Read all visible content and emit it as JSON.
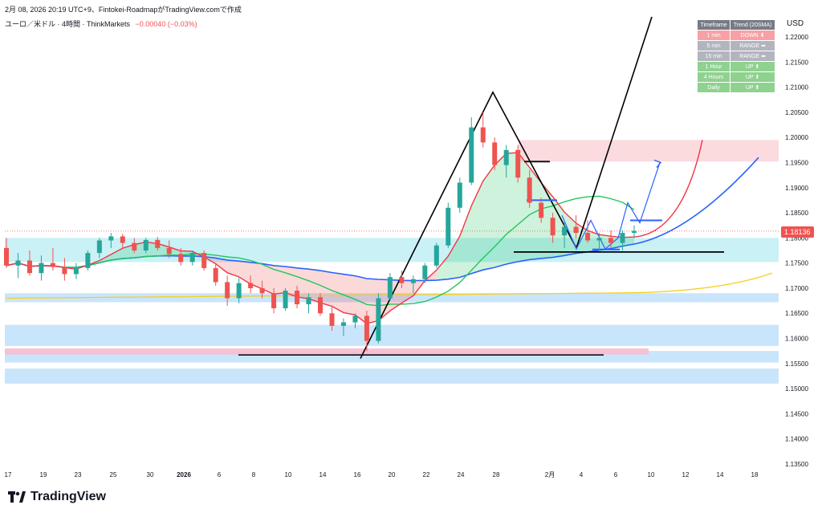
{
  "header": {
    "date_line": "2月 08, 2026 20:19 UTC+9、Fintokei-RoadmapがTradingView.comで作成",
    "symbol": "ユーロ／米ドル · 4時間 · ThinkMarkets",
    "change": "−0.00040 (−0.03%)"
  },
  "currency_label": "USD",
  "last_price": "1.18136",
  "brand": "TradingView",
  "trend_table": {
    "headers": [
      "Timeframe",
      "Trend (20SMA)"
    ],
    "rows": [
      {
        "tf": "1 min",
        "trend": "DOWN ⬇",
        "state": "down"
      },
      {
        "tf": "5 min",
        "trend": "RANGE ➡",
        "state": "range"
      },
      {
        "tf": "15 min",
        "trend": "RANGE ➡",
        "state": "range"
      },
      {
        "tf": "1 Hour",
        "trend": "UP ⬆",
        "state": "up"
      },
      {
        "tf": "4 Hours",
        "trend": "UP ⬆",
        "state": "up"
      },
      {
        "tf": "Daily",
        "trend": "UP ⬆",
        "state": "up"
      }
    ]
  },
  "colors": {
    "up_candle": "#26a69a",
    "down_candle": "#ef5350",
    "ma_red": "#f23645",
    "ma_green": "#22c55e",
    "ma_blue": "#2962ff",
    "ma_yellow": "#f5d020",
    "zone_cyan": "#b2ebf2",
    "zone_blue": "#bbdefb",
    "zone_pink": "#f8bbd0"
  },
  "chart_data": {
    "type": "candlestick",
    "ylim": [
      1.135,
      1.225
    ],
    "y_ticks": [
      "1.22000",
      "1.21500",
      "1.21000",
      "1.20500",
      "1.20000",
      "1.19500",
      "1.19000",
      "1.18500",
      "1.18000",
      "1.17500",
      "1.17000",
      "1.16500",
      "1.16000",
      "1.15500",
      "1.15000",
      "1.14500",
      "1.14000",
      "1.13500"
    ],
    "x_ticks": [
      "17",
      "19",
      "23",
      "25",
      "30",
      "2026",
      "6",
      "8",
      "10",
      "14",
      "16",
      "20",
      "22",
      "24",
      "28",
      "2月",
      "4",
      "6",
      "10",
      "12",
      "14",
      "18"
    ],
    "candles": [
      {
        "o": 1.178,
        "h": 1.18,
        "l": 1.174,
        "c": 1.1745
      },
      {
        "o": 1.1745,
        "h": 1.177,
        "l": 1.172,
        "c": 1.1755
      },
      {
        "o": 1.1755,
        "h": 1.1775,
        "l": 1.1725,
        "c": 1.173
      },
      {
        "o": 1.173,
        "h": 1.1765,
        "l": 1.1715,
        "c": 1.175
      },
      {
        "o": 1.175,
        "h": 1.178,
        "l": 1.1735,
        "c": 1.1742
      },
      {
        "o": 1.1742,
        "h": 1.176,
        "l": 1.1715,
        "c": 1.1728
      },
      {
        "o": 1.1728,
        "h": 1.175,
        "l": 1.1718,
        "c": 1.174
      },
      {
        "o": 1.174,
        "h": 1.1775,
        "l": 1.1735,
        "c": 1.177
      },
      {
        "o": 1.177,
        "h": 1.18,
        "l": 1.176,
        "c": 1.1795
      },
      {
        "o": 1.1795,
        "h": 1.181,
        "l": 1.178,
        "c": 1.1803
      },
      {
        "o": 1.1803,
        "h": 1.1808,
        "l": 1.178,
        "c": 1.179
      },
      {
        "o": 1.179,
        "h": 1.18,
        "l": 1.177,
        "c": 1.1775
      },
      {
        "o": 1.1775,
        "h": 1.18,
        "l": 1.177,
        "c": 1.1796
      },
      {
        "o": 1.1796,
        "h": 1.1802,
        "l": 1.1775,
        "c": 1.178
      },
      {
        "o": 1.178,
        "h": 1.1795,
        "l": 1.176,
        "c": 1.1768
      },
      {
        "o": 1.1768,
        "h": 1.178,
        "l": 1.1745,
        "c": 1.1752
      },
      {
        "o": 1.1752,
        "h": 1.1775,
        "l": 1.1745,
        "c": 1.177
      },
      {
        "o": 1.177,
        "h": 1.1775,
        "l": 1.1735,
        "c": 1.174
      },
      {
        "o": 1.174,
        "h": 1.175,
        "l": 1.1705,
        "c": 1.1712
      },
      {
        "o": 1.1712,
        "h": 1.1725,
        "l": 1.1665,
        "c": 1.168
      },
      {
        "o": 1.168,
        "h": 1.172,
        "l": 1.167,
        "c": 1.171
      },
      {
        "o": 1.171,
        "h": 1.1725,
        "l": 1.169,
        "c": 1.17
      },
      {
        "o": 1.17,
        "h": 1.1715,
        "l": 1.168,
        "c": 1.169
      },
      {
        "o": 1.169,
        "h": 1.17,
        "l": 1.165,
        "c": 1.166
      },
      {
        "o": 1.166,
        "h": 1.17,
        "l": 1.1655,
        "c": 1.1695
      },
      {
        "o": 1.1695,
        "h": 1.1705,
        "l": 1.166,
        "c": 1.1668
      },
      {
        "o": 1.1668,
        "h": 1.169,
        "l": 1.165,
        "c": 1.1682
      },
      {
        "o": 1.1682,
        "h": 1.169,
        "l": 1.1645,
        "c": 1.165
      },
      {
        "o": 1.165,
        "h": 1.1665,
        "l": 1.1615,
        "c": 1.1625
      },
      {
        "o": 1.1625,
        "h": 1.164,
        "l": 1.1605,
        "c": 1.1632
      },
      {
        "o": 1.1632,
        "h": 1.165,
        "l": 1.162,
        "c": 1.1645
      },
      {
        "o": 1.1645,
        "h": 1.1655,
        "l": 1.1575,
        "c": 1.1595
      },
      {
        "o": 1.1595,
        "h": 1.169,
        "l": 1.159,
        "c": 1.168
      },
      {
        "o": 1.168,
        "h": 1.173,
        "l": 1.1675,
        "c": 1.1722
      },
      {
        "o": 1.1722,
        "h": 1.1735,
        "l": 1.17,
        "c": 1.171
      },
      {
        "o": 1.171,
        "h": 1.1725,
        "l": 1.169,
        "c": 1.1718
      },
      {
        "o": 1.1718,
        "h": 1.175,
        "l": 1.171,
        "c": 1.1745
      },
      {
        "o": 1.1745,
        "h": 1.179,
        "l": 1.174,
        "c": 1.1785
      },
      {
        "o": 1.1785,
        "h": 1.187,
        "l": 1.178,
        "c": 1.186
      },
      {
        "o": 1.186,
        "h": 1.192,
        "l": 1.185,
        "c": 1.191
      },
      {
        "o": 1.191,
        "h": 1.204,
        "l": 1.1905,
        "c": 1.202
      },
      {
        "o": 1.202,
        "h": 1.205,
        "l": 1.198,
        "c": 1.199
      },
      {
        "o": 1.199,
        "h": 1.2,
        "l": 1.1935,
        "c": 1.1945
      },
      {
        "o": 1.1945,
        "h": 1.1985,
        "l": 1.192,
        "c": 1.1975
      },
      {
        "o": 1.1975,
        "h": 1.1985,
        "l": 1.191,
        "c": 1.192
      },
      {
        "o": 1.192,
        "h": 1.1935,
        "l": 1.186,
        "c": 1.187
      },
      {
        "o": 1.187,
        "h": 1.188,
        "l": 1.183,
        "c": 1.184
      },
      {
        "o": 1.184,
        "h": 1.185,
        "l": 1.179,
        "c": 1.1805
      },
      {
        "o": 1.1805,
        "h": 1.183,
        "l": 1.178,
        "c": 1.1822
      },
      {
        "o": 1.1822,
        "h": 1.1845,
        "l": 1.18,
        "c": 1.181
      },
      {
        "o": 1.181,
        "h": 1.1835,
        "l": 1.179,
        "c": 1.1795
      },
      {
        "o": 1.1795,
        "h": 1.181,
        "l": 1.1775,
        "c": 1.18
      },
      {
        "o": 1.18,
        "h": 1.1815,
        "l": 1.178,
        "c": 1.179
      },
      {
        "o": 1.179,
        "h": 1.1815,
        "l": 1.1775,
        "c": 1.181
      },
      {
        "o": 1.181,
        "h": 1.1825,
        "l": 1.18,
        "c": 1.1814
      }
    ]
  }
}
